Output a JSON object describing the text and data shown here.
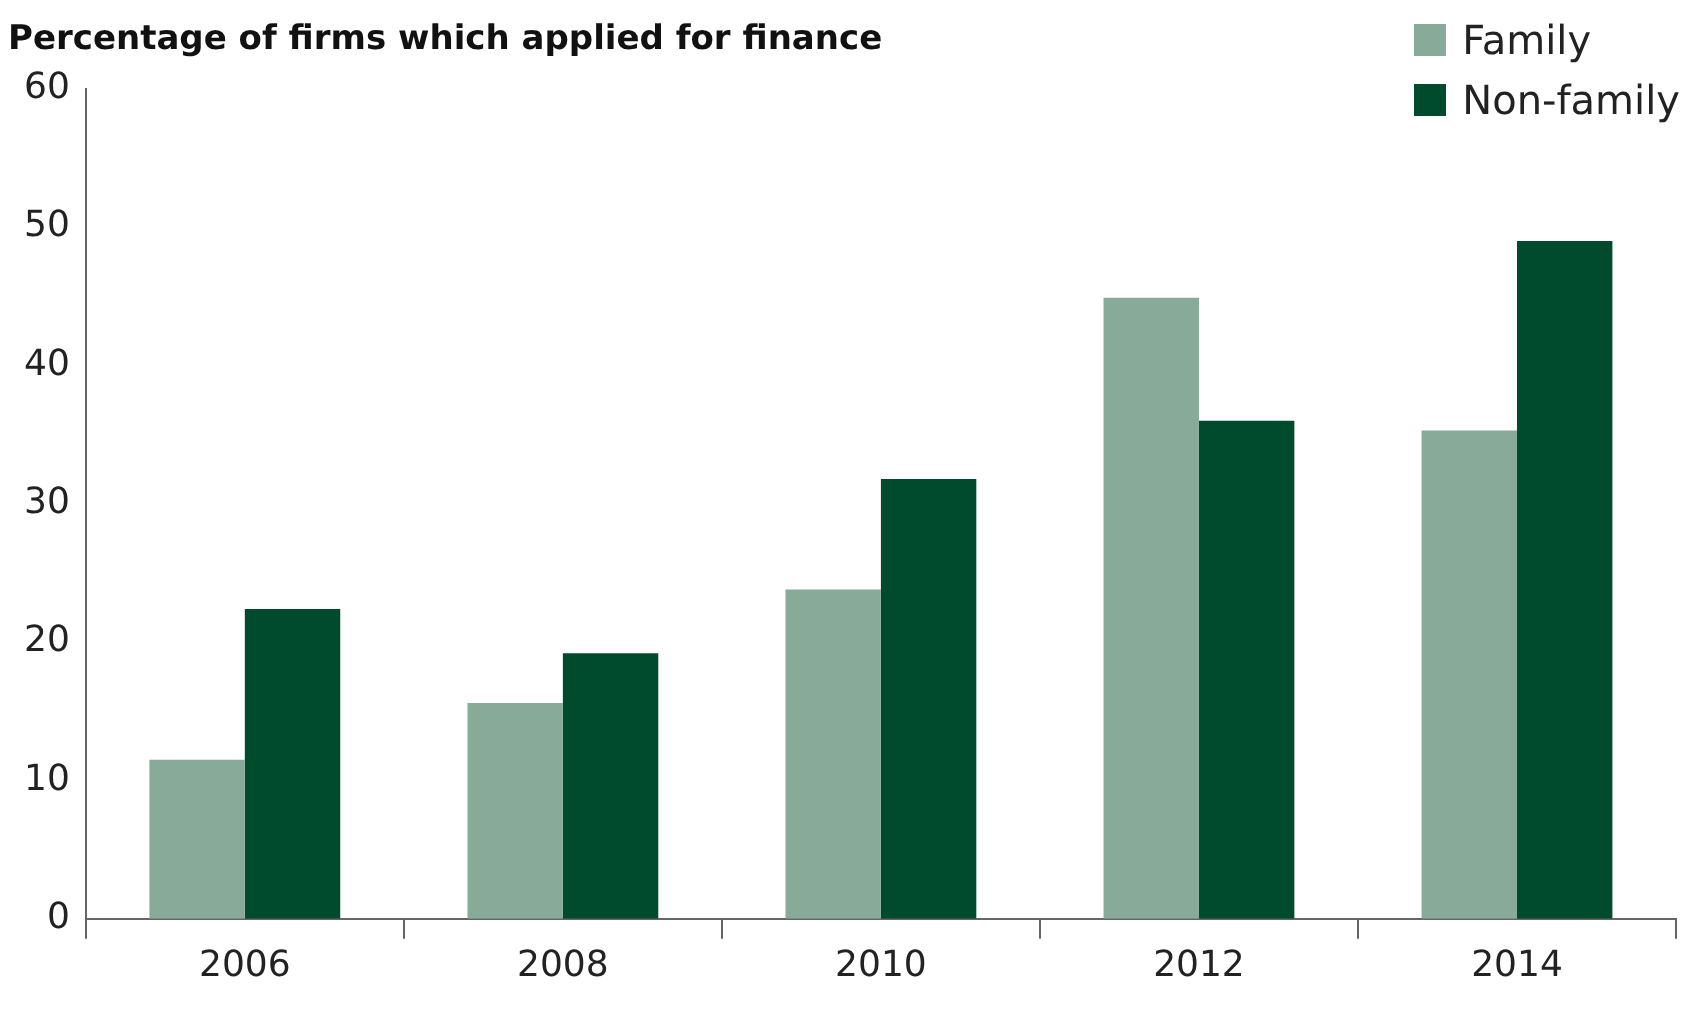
{
  "chart_data": {
    "type": "bar",
    "title": "Percentage of firms which applied for finance",
    "categories": [
      "2006",
      "2008",
      "2010",
      "2012",
      "2014"
    ],
    "series": [
      {
        "name": "Family",
        "color": "#87ab98",
        "values": [
          11.5,
          15.6,
          23.8,
          44.9,
          35.3
        ]
      },
      {
        "name": "Non-family",
        "color": "#004b2d",
        "values": [
          22.4,
          19.2,
          31.8,
          36.0,
          49.0
        ]
      }
    ],
    "ylim": [
      0,
      60
    ],
    "yticks": [
      0,
      10,
      20,
      30,
      40,
      50,
      60
    ],
    "grid": false,
    "legend": "top right"
  }
}
